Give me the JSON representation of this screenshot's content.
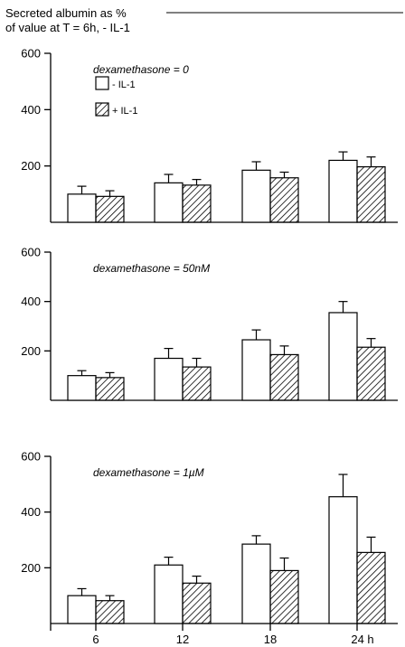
{
  "figure": {
    "ylabel_line1": "Secreted albumin as %",
    "ylabel_line2": "of value at T = 6h, - IL-1",
    "x_unit": "h"
  },
  "legend": {
    "minus": "- IL-1",
    "plus": "+ IL-1"
  },
  "chart_data": [
    {
      "type": "bar",
      "condition_label": "dexamethasone = 0",
      "categories": [
        "6",
        "12",
        "18",
        "24"
      ],
      "series": [
        {
          "name": "- IL-1",
          "values": [
            100,
            140,
            185,
            220
          ],
          "errors": [
            28,
            30,
            30,
            30
          ]
        },
        {
          "name": "+ IL-1",
          "values": [
            92,
            132,
            158,
            197
          ],
          "errors": [
            20,
            20,
            20,
            35
          ]
        }
      ],
      "yticks": [
        200,
        400,
        600
      ],
      "ylim": [
        0,
        600
      ],
      "legend_position": "top-left"
    },
    {
      "type": "bar",
      "condition_label": "dexamethasone = 50nM",
      "categories": [
        "6",
        "12",
        "18",
        "24"
      ],
      "series": [
        {
          "name": "- IL-1",
          "values": [
            100,
            170,
            245,
            355
          ],
          "errors": [
            20,
            40,
            40,
            45
          ]
        },
        {
          "name": "+ IL-1",
          "values": [
            92,
            135,
            185,
            215
          ],
          "errors": [
            20,
            35,
            35,
            35
          ]
        }
      ],
      "yticks": [
        200,
        400,
        600
      ],
      "ylim": [
        0,
        600
      ]
    },
    {
      "type": "bar",
      "condition_label": "dexamethasone = 1µM",
      "categories": [
        "6",
        "12",
        "18",
        "24"
      ],
      "series": [
        {
          "name": "- IL-1",
          "values": [
            100,
            210,
            285,
            455
          ],
          "errors": [
            25,
            28,
            30,
            80
          ]
        },
        {
          "name": "+ IL-1",
          "values": [
            82,
            145,
            190,
            255
          ],
          "errors": [
            18,
            25,
            45,
            55
          ]
        }
      ],
      "xticks": [
        "6",
        "12",
        "18",
        "24 h"
      ],
      "yticks": [
        200,
        400,
        600
      ],
      "ylim": [
        0,
        600
      ]
    }
  ]
}
